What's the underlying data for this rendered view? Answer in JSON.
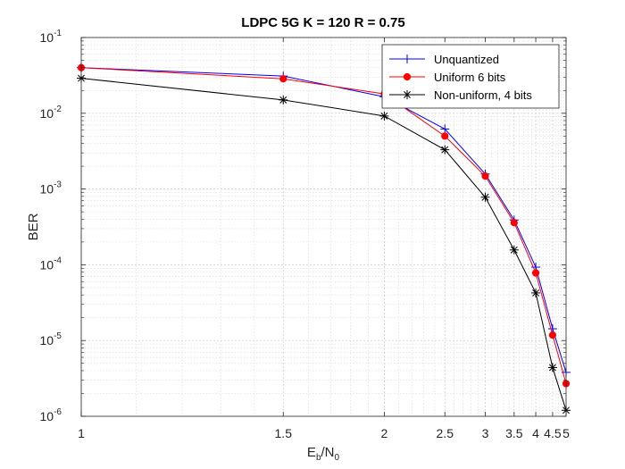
{
  "chart_data": {
    "type": "line",
    "title": "LDPC 5G K = 120 R = 0.75",
    "xlabel": {
      "main": "E",
      "sub1": "b",
      "mid": "/N",
      "sub2": "0"
    },
    "ylabel": "BER",
    "x_scale": "reciprocal",
    "y_scale": "log",
    "xlim": [
      1,
      5
    ],
    "ylim": [
      1e-06,
      0.1
    ],
    "grid": true,
    "minor_grid": true,
    "legend_position": "top-right",
    "x_ticks": [
      {
        "value": 1,
        "label": "1"
      },
      {
        "value": 1.5,
        "label": "1.5"
      },
      {
        "value": 2,
        "label": "2"
      },
      {
        "value": 2.5,
        "label": "2.5"
      },
      {
        "value": 3,
        "label": "3"
      },
      {
        "value": 3.5,
        "label": "3.5"
      },
      {
        "value": 4,
        "label": "4"
      },
      {
        "value": 4.5,
        "label": "4.5"
      },
      {
        "value": 5,
        "label": "5"
      }
    ],
    "y_ticks": [
      {
        "value": 0.1,
        "base": "10",
        "exp": "-1"
      },
      {
        "value": 0.01,
        "base": "10",
        "exp": "-2"
      },
      {
        "value": 0.001,
        "base": "10",
        "exp": "-3"
      },
      {
        "value": 0.0001,
        "base": "10",
        "exp": "-4"
      },
      {
        "value": 1e-05,
        "base": "10",
        "exp": "-5"
      },
      {
        "value": 1e-06,
        "base": "10",
        "exp": "-6"
      }
    ],
    "x": [
      1,
      1.5,
      2,
      2.5,
      3,
      3.5,
      4,
      4.5,
      5
    ],
    "series": [
      {
        "name": "Unquantized",
        "color": "#0000ff",
        "marker": "plus",
        "values": [
          0.04,
          0.031,
          0.0165,
          0.0062,
          0.00158,
          0.00039,
          9.3e-05,
          1.43e-05,
          3.8e-06
        ]
      },
      {
        "name": "Uniform 6 bits",
        "color": "#ff0000",
        "marker": "dot",
        "values": [
          0.04,
          0.0285,
          0.018,
          0.005,
          0.00148,
          0.00036,
          7.8e-05,
          1.18e-05,
          2.7e-06
        ]
      },
      {
        "name": "Non-uniform, 4 bits",
        "color": "#000000",
        "marker": "asterisk",
        "values": [
          0.029,
          0.015,
          0.0092,
          0.0033,
          0.00078,
          0.000157,
          4.25e-05,
          4.4e-06,
          1.2e-06
        ]
      }
    ]
  }
}
